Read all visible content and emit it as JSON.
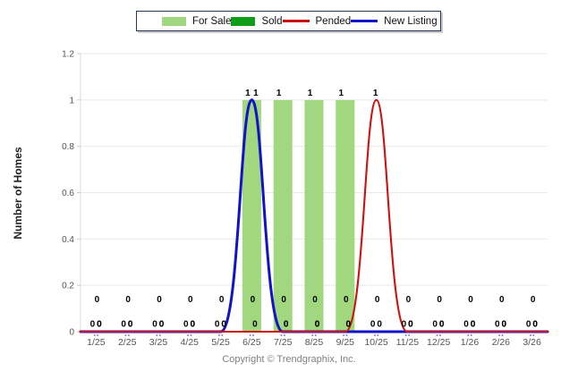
{
  "legend": {
    "items": [
      {
        "label": "For Sale",
        "swatch": "box-icon",
        "color": "#A0D77F"
      },
      {
        "label": "Sold",
        "swatch": "box-icon",
        "color": "#0F9D18"
      },
      {
        "label": "Pended",
        "swatch": "line-icon",
        "color": "#CC1111"
      },
      {
        "label": "New Listing",
        "swatch": "line-icon",
        "color": "#1212C8"
      }
    ]
  },
  "chart_data": {
    "type": "mixed-bar-line",
    "categories": [
      "1/25",
      "2/25",
      "3/25",
      "4/25",
      "5/25",
      "6/25",
      "7/25",
      "8/25",
      "9/25",
      "10/25",
      "11/25",
      "12/25",
      "1/26",
      "2/26",
      "3/26"
    ],
    "series": [
      {
        "name": "For Sale",
        "type": "bar",
        "color": "#A0D77F",
        "values": [
          0,
          0,
          0,
          0,
          0,
          1,
          1,
          1,
          1,
          0,
          0,
          0,
          0,
          0,
          0
        ]
      },
      {
        "name": "Sold",
        "type": "bar",
        "color": "#0F9D18",
        "values": [
          0,
          0,
          0,
          0,
          0,
          0,
          0,
          0,
          0,
          0,
          0,
          0,
          0,
          0,
          0
        ]
      },
      {
        "name": "Pended",
        "type": "line",
        "color": "#CC1111",
        "values": [
          0,
          0,
          0,
          0,
          0,
          0,
          0,
          0,
          0,
          1,
          0,
          0,
          0,
          0,
          0
        ]
      },
      {
        "name": "New Listing",
        "type": "line",
        "color": "#1212C8",
        "values": [
          0,
          0,
          0,
          0,
          0,
          1,
          0,
          0,
          0,
          0,
          0,
          0,
          0,
          0,
          0
        ]
      }
    ],
    "ylabel": "Number of Homes",
    "xlabel": "",
    "title": "",
    "ylim": [
      0,
      1.2
    ],
    "yticks": [
      "0",
      "0.2",
      "0.4",
      "0.6",
      "0.8",
      "1",
      "1.2"
    ],
    "grid": "horizontal",
    "legend_position": "top",
    "data_labels_shown": true
  },
  "footer": {
    "copyright": "Copyright © Trendgraphix, Inc."
  }
}
